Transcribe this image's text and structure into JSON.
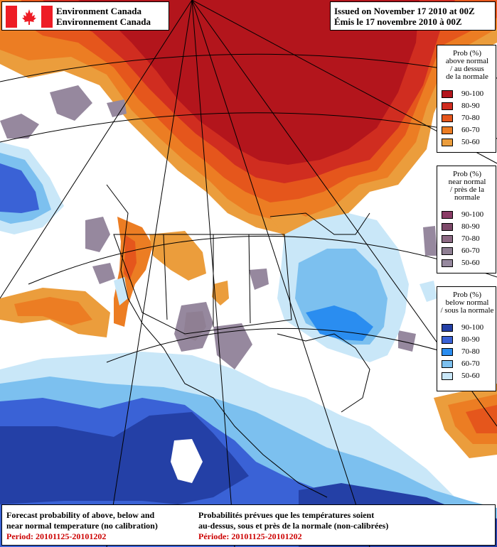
{
  "header": {
    "agency_en": "Environment Canada",
    "agency_fr": "Environnement Canada",
    "issued_en": "Issued on November 17 2010 at 00Z",
    "issued_fr": "Émis le 17 novembre 2010 à 00Z"
  },
  "legend": {
    "above": {
      "title": [
        "Prob (%)",
        "above normal",
        "/ au dessus",
        "de la normale"
      ],
      "items": [
        {
          "label": "90-100",
          "color": "#b3151c"
        },
        {
          "label": "80-90",
          "color": "#d02d20"
        },
        {
          "label": "70-80",
          "color": "#e5561c"
        },
        {
          "label": "60-70",
          "color": "#ec7d23"
        },
        {
          "label": "50-60",
          "color": "#eb9d3c"
        }
      ]
    },
    "near": {
      "title": [
        "Prob (%)",
        "near normal",
        "/ près de la",
        "normale"
      ],
      "items": [
        {
          "label": "90-100",
          "color": "#8a3c66"
        },
        {
          "label": "80-90",
          "color": "#7d4a6a"
        },
        {
          "label": "70-80",
          "color": "#8d6a84"
        },
        {
          "label": "60-70",
          "color": "#8f7f93"
        },
        {
          "label": "50-60",
          "color": "#96889e"
        }
      ]
    },
    "below": {
      "title": [
        "Prob (%)",
        "below normal",
        "/ sous la normale"
      ],
      "items": [
        {
          "label": "90-100",
          "color": "#2440a6"
        },
        {
          "label": "80-90",
          "color": "#3a62d6"
        },
        {
          "label": "70-80",
          "color": "#2a8df0"
        },
        {
          "label": "60-70",
          "color": "#7cc0ef"
        },
        {
          "label": "50-60",
          "color": "#c9e7f8"
        }
      ]
    }
  },
  "footer": {
    "left_line1": "Forecast probability of above, below and",
    "left_line2": "near normal temperature (no calibration)",
    "left_period": "Period: 20101125-20101202",
    "right_line1": "Probabilités prévues que les températures soient",
    "right_line2": "au-dessus, sous et près de la normale (non-calibrées)",
    "right_period": "Période: 20101125-20101202"
  }
}
